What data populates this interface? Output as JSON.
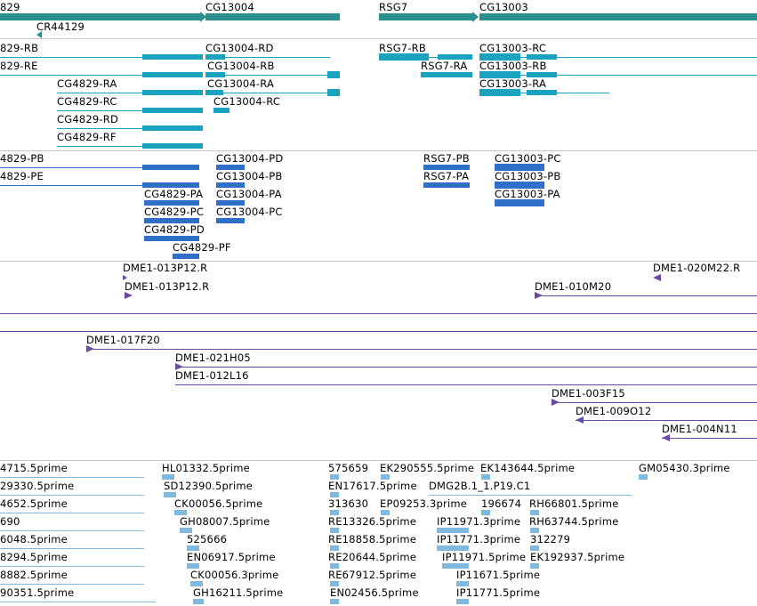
{
  "colors": {
    "gene": "#2a8f8f",
    "transcript": "#1aa3bf",
    "protein": "#2f6fc7",
    "bac": "#6b4aa5",
    "est": "#7fb9de",
    "separator": "#c8c8c8"
  },
  "tracks": {
    "genes": {
      "labels": {
        "g_829": "829",
        "cr44129": "CR44129",
        "cg13004": "CG13004",
        "rsg7": "RSG7",
        "cg13003": "CG13003"
      }
    },
    "transcripts": {
      "labels": {
        "t_829_rb": "829-RB",
        "t_829_re": "829-RE",
        "cg4829_ra": "CG4829-RA",
        "cg4829_rc": "CG4829-RC",
        "cg4829_rd": "CG4829-RD",
        "cg4829_rf": "CG4829-RF",
        "cg13004_rd": "CG13004-RD",
        "cg13004_rb": "CG13004-RB",
        "cg13004_ra": "CG13004-RA",
        "cg13004_rc": "CG13004-RC",
        "rsg7_rb": "RSG7-RB",
        "rsg7_ra": "RSG7-RA",
        "cg13003_rc": "CG13003-RC",
        "cg13003_rb": "CG13003-RB",
        "cg13003_ra": "CG13003-RA"
      }
    },
    "proteins": {
      "labels": {
        "p_4829_pb": "4829-PB",
        "p_4829_pe": "4829-PE",
        "cg4829_pa": "CG4829-PA",
        "cg4829_pc": "CG4829-PC",
        "cg4829_pd": "CG4829-PD",
        "cg4829_pf": "CG4829-PF",
        "cg13004_pd": "CG13004-PD",
        "cg13004_pb": "CG13004-PB",
        "cg13004_pa": "CG13004-PA",
        "cg13004_pc": "CG13004-PC",
        "rsg7_pb": "RSG7-PB",
        "rsg7_pa": "RSG7-PA",
        "cg13003_pc": "CG13003-PC",
        "cg13003_pb": "CG13003-PB",
        "cg13003_pa": "CG13003-PA"
      }
    },
    "bacs": {
      "labels": {
        "dme1_013p12_r_a": "DME1-013P12.R",
        "dme1_013p12_r_b": "DME1-013P12.R",
        "dme1_020m22_r": "DME1-020M22.R",
        "dme1_010m20": "DME1-010M20",
        "dme1_017f20": "DME1-017F20",
        "dme1_021h05": "DME1-021H05",
        "dme1_012l16": "DME1-012L16",
        "dme1_003f15": "DME1-003F15",
        "dme1_009o12": "DME1-009O12",
        "dme1_004n11": "DME1-004N11"
      }
    },
    "ests": {
      "labels": {
        "e_4715": "4715.5prime",
        "e_29330": "29330.5prime",
        "e_4652": "4652.5prime",
        "e_690": "690",
        "e_6048": "6048.5prime",
        "e_8294": "8294.5prime",
        "e_8882": "8882.5prime",
        "e_90351": "90351.5prime",
        "hl01332": "HL01332.5prime",
        "sd12390": "SD12390.5prime",
        "ck00056_5": "CK00056.5prime",
        "gh08007": "GH08007.5prime",
        "e_525666": "525666",
        "en06917": "EN06917.5prime",
        "ck00056_3": "CK00056.3prime",
        "gh16211": "GH16211.5prime",
        "e_575659": "575659",
        "en17617": "EN17617.5prime",
        "e_313630": "313630",
        "re13326": "RE13326.5prime",
        "re18858": "RE18858.5prime",
        "re20644": "RE20644.5prime",
        "re67912": "RE67912.5prime",
        "en02456": "EN02456.5prime",
        "ek290555": "EK290555.5prime",
        "dmg2b": "DMG2B.1_1.P19.C1",
        "ep09253": "EP09253.3prime",
        "ip11971_3": "IP11971.3prime",
        "ip11771_3": "IP11771.3prime",
        "ip11971_5": "IP11971.5prime",
        "ip11671": "IP11671.5prime",
        "ip11771_5": "IP11771.5prime",
        "ek143644": "EK143644.5prime",
        "e_196674": "196674",
        "rh66801": "RH66801.5prime",
        "rh63744": "RH63744.5prime",
        "e_312279": "312279",
        "ek192937": "EK192937.5prime",
        "gm05430": "GM05430.3prime"
      }
    }
  }
}
